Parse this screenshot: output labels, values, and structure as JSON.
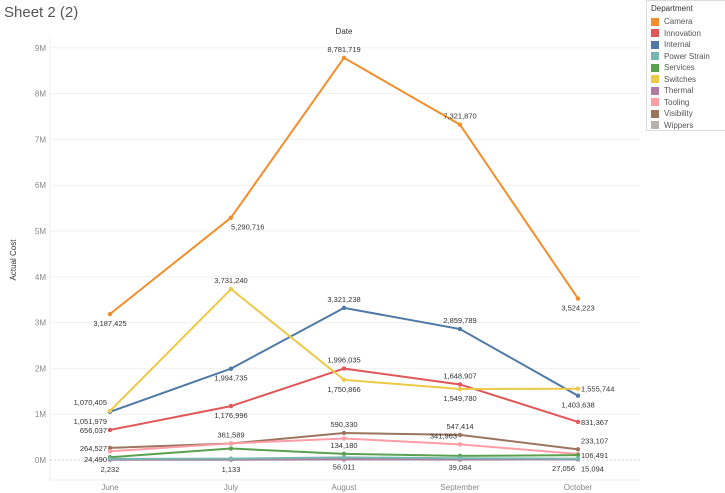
{
  "title": "Sheet 2 (2)",
  "chart_data": {
    "type": "line",
    "title": "Date",
    "xlabel": "Date",
    "ylabel": "Actual Cost",
    "categories": [
      "June",
      "July",
      "August",
      "September",
      "October"
    ],
    "yticks": [
      "0M",
      "1M",
      "2M",
      "3M",
      "4M",
      "5M",
      "6M",
      "7M",
      "8M",
      "9M"
    ],
    "ylim": [
      -500000,
      9400000
    ],
    "legend": {
      "title": "Department",
      "placement": "right"
    },
    "series": [
      {
        "name": "Camera",
        "color": "#f28e2b",
        "values": [
          3187425,
          5290716,
          8781719,
          7321870,
          3524223
        ],
        "labels": [
          "3,187,425",
          "5,290,716",
          "8,781,719",
          "7,321,870",
          "3,524,223"
        ],
        "pos": [
          "b",
          "b",
          "a",
          "a",
          "b"
        ]
      },
      {
        "name": "Innovation",
        "color": "#e15759",
        "values": [
          656037,
          1176996,
          1996035,
          1648907,
          831367
        ],
        "labels": [
          "656,037",
          "1,176,996",
          "1,996,035",
          "1,648,907",
          "831,367"
        ],
        "pos": [
          "l",
          "b",
          "a",
          "a",
          "r"
        ]
      },
      {
        "name": "Internal",
        "color": "#4e79a7",
        "values": [
          1051979,
          1994735,
          3321238,
          2859789,
          1403638
        ],
        "labels": [
          "1,051,979",
          "1,994,735",
          "3,321,238",
          "2,859,789",
          "1,403,638"
        ],
        "pos": [
          "bl",
          "b",
          "a",
          "a",
          "b"
        ]
      },
      {
        "name": "Power Strain",
        "color": "#76b7b2",
        "values": [
          24490,
          30000,
          56011,
          39084,
          27056
        ],
        "labels": [
          "24,490",
          null,
          "56,011",
          "39,084",
          "27,056"
        ],
        "pos": [
          "l",
          "b",
          "b",
          "b",
          "bl"
        ]
      },
      {
        "name": "Services",
        "color": "#59a14f",
        "values": [
          60000,
          250000,
          134180,
          90000,
          106491
        ],
        "labels": [
          null,
          null,
          "134,180",
          null,
          "106,491"
        ],
        "pos": [
          "a",
          "a",
          "a",
          "a",
          "r"
        ]
      },
      {
        "name": "Switches",
        "color": "#edc948",
        "values": [
          1070405,
          3731240,
          1750866,
          1549780,
          1555744
        ],
        "labels": [
          "1,070,405",
          "3,731,240",
          "1,750,866",
          "1,549,780",
          "1,555,744"
        ],
        "pos": [
          "al",
          "a",
          "b",
          "b",
          "r"
        ]
      },
      {
        "name": "Thermal",
        "color": "#b07aa1",
        "values": [
          10000,
          15000,
          20000,
          15000,
          12000
        ],
        "labels": [
          null,
          null,
          null,
          null,
          null
        ],
        "pos": [
          "a",
          "a",
          "a",
          "a",
          "a"
        ]
      },
      {
        "name": "Tooling",
        "color": "#ff9da7",
        "values": [
          190000,
          361589,
          470000,
          341963,
          130000
        ],
        "labels": [
          null,
          "361,589",
          null,
          "341,963",
          null
        ],
        "pos": [
          "a",
          "a",
          "a",
          "al",
          "a"
        ]
      },
      {
        "name": "Visibility",
        "color": "#9c755f",
        "values": [
          264527,
          360000,
          590330,
          547414,
          233107
        ],
        "labels": [
          "264,527",
          null,
          "590,330",
          "547,414",
          "233,107"
        ],
        "pos": [
          "l",
          "a",
          "a",
          "a",
          "ar"
        ]
      },
      {
        "name": "Wippers",
        "color": "#bab0ac",
        "values": [
          2232,
          1133,
          8000,
          5000,
          15094
        ],
        "labels": [
          "2,232",
          "1,133",
          null,
          null,
          "15,094"
        ],
        "pos": [
          "b",
          "b",
          "b",
          "b",
          "br"
        ]
      }
    ]
  }
}
